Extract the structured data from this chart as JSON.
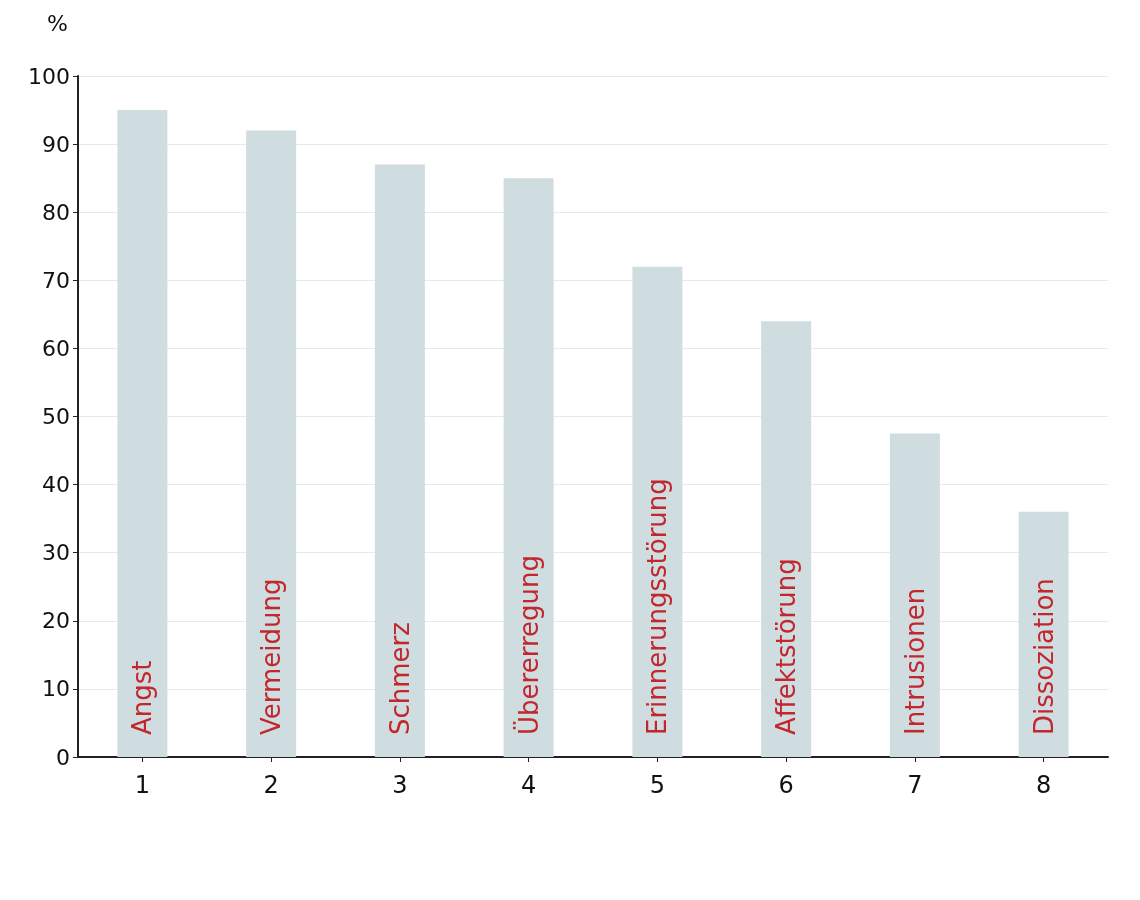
{
  "chart_data": {
    "type": "bar",
    "ylabel": "%",
    "categories": [
      "1",
      "2",
      "3",
      "4",
      "5",
      "6",
      "7",
      "8"
    ],
    "values": [
      95,
      92,
      87,
      85,
      72,
      64,
      47.5,
      36
    ],
    "color": "#cfdde0",
    "ylim": [
      0,
      100
    ],
    "yticks": [
      0,
      10,
      20,
      30,
      40,
      50,
      60,
      70,
      80,
      90,
      100
    ],
    "grid": "y",
    "annotations": [
      {
        "text": "Angst",
        "x": "1",
        "y": 0
      },
      {
        "text": "Vermeidung",
        "x": "2",
        "y": 0
      },
      {
        "text": "Schmerz",
        "x": "3",
        "y": 0
      },
      {
        "text": "Übererregung",
        "x": "4",
        "y": 0
      },
      {
        "text": "Erinnerungsstörung",
        "x": "5",
        "y": 0
      },
      {
        "text": "Affektstörung",
        "x": "6",
        "y": 0
      },
      {
        "text": "Intrusionen",
        "x": "7",
        "y": 0
      },
      {
        "text": "Dissoziation",
        "x": "8",
        "y": 0
      }
    ]
  }
}
